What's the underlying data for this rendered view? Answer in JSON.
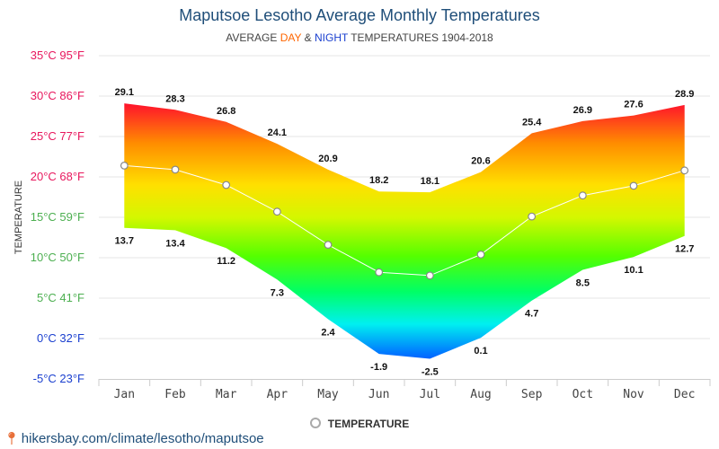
{
  "chart_data": {
    "type": "area",
    "title": "Maputsoe Lesotho Average Monthly Temperatures",
    "subtitle": {
      "prefix": "AVERAGE ",
      "day": "DAY",
      "amp": " & ",
      "night": "NIGHT",
      "suffix": " TEMPERATURES 1904-2018"
    },
    "ylabel": "TEMPERATURE",
    "ylim": [
      -5,
      35
    ],
    "yticks": [
      {
        "value": 35,
        "label": "35°C 95°F",
        "color": "#e8175d"
      },
      {
        "value": 30,
        "label": "30°C 86°F",
        "color": "#e8175d"
      },
      {
        "value": 25,
        "label": "25°C 77°F",
        "color": "#e8175d"
      },
      {
        "value": 20,
        "label": "20°C 68°F",
        "color": "#e8175d"
      },
      {
        "value": 15,
        "label": "15°C 59°F",
        "color": "#4caf50"
      },
      {
        "value": 10,
        "label": "10°C 50°F",
        "color": "#4caf50"
      },
      {
        "value": 5,
        "label": "5°C 41°F",
        "color": "#4caf50"
      },
      {
        "value": 0,
        "label": "0°C 32°F",
        "color": "#1a3fcf"
      },
      {
        "value": -5,
        "label": "-5°C 23°F",
        "color": "#1a3fcf"
      }
    ],
    "categories": [
      "Jan",
      "Feb",
      "Mar",
      "Apr",
      "May",
      "Jun",
      "Jul",
      "Aug",
      "Sep",
      "Oct",
      "Nov",
      "Dec"
    ],
    "series": [
      {
        "name": "DAY",
        "values": [
          29.1,
          28.3,
          26.8,
          24.1,
          20.9,
          18.2,
          18.1,
          20.6,
          25.4,
          26.9,
          27.6,
          28.9
        ]
      },
      {
        "name": "NIGHT",
        "values": [
          13.7,
          13.4,
          11.2,
          7.3,
          2.4,
          -1.9,
          -2.5,
          0.1,
          4.7,
          8.5,
          10.1,
          12.7
        ]
      },
      {
        "name": "TEMPERATURE",
        "values": [
          21.4,
          20.9,
          19.0,
          15.7,
          11.6,
          8.2,
          7.8,
          10.4,
          15.1,
          17.7,
          18.9,
          20.8
        ]
      }
    ],
    "legend": "TEMPERATURE",
    "grid": true
  },
  "source": "hikersbay.com/climate/lesotho/maputsoe"
}
